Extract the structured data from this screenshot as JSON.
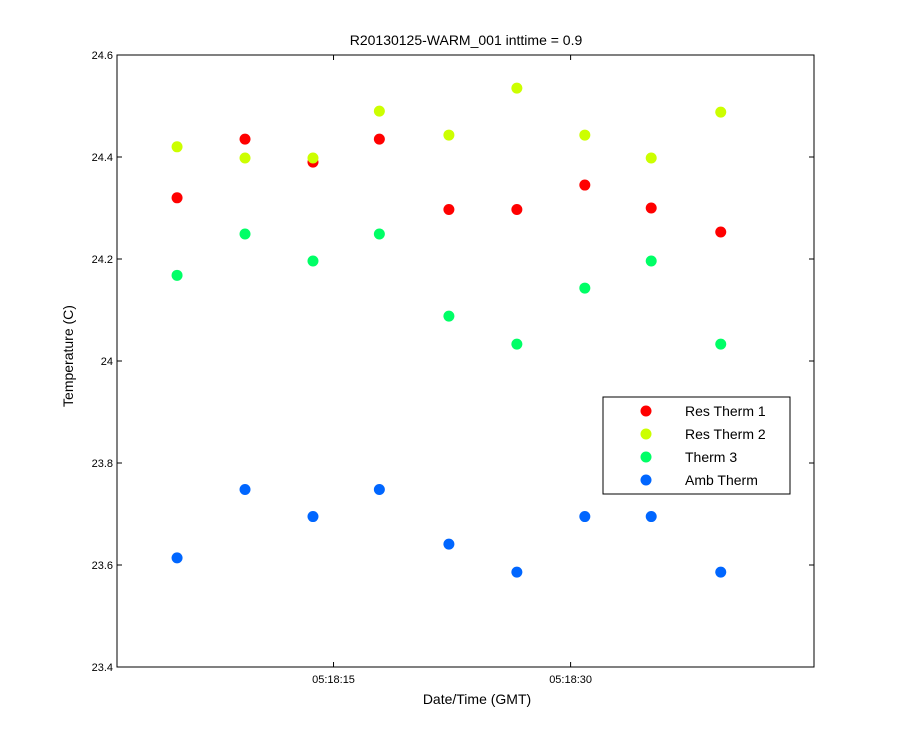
{
  "chart_data": {
    "type": "scatter",
    "title": "R20130125-WARM_001 inttime = 0.9",
    "xlabel": "Date/Time (GMT)",
    "ylabel": "Temperature (C)",
    "x_unit": "seconds past 05:18:00",
    "xlim": [
      1.3,
      45.4
    ],
    "ylim": [
      23.4,
      24.6
    ],
    "y_ticks": [
      23.4,
      23.6,
      23.8,
      24.0,
      24.2,
      24.4,
      24.6
    ],
    "y_tick_labels": [
      "23.4",
      "23.6",
      "23.8",
      "24",
      "24.2",
      "24.4",
      "24.6"
    ],
    "x_ticks": [
      15,
      30
    ],
    "x_tick_labels": [
      "05:18:15",
      "05:18:30"
    ],
    "grid": false,
    "legend_position": "right",
    "x": [
      5.1,
      9.4,
      13.7,
      17.9,
      22.3,
      26.6,
      30.9,
      35.1,
      39.5
    ],
    "series": [
      {
        "name": "Res Therm 1",
        "color": "#ff0000",
        "values": [
          24.32,
          24.435,
          24.39,
          24.435,
          24.297,
          24.297,
          24.345,
          24.3,
          24.253
        ]
      },
      {
        "name": "Res Therm 2",
        "color": "#ccff00",
        "values": [
          24.42,
          24.398,
          24.398,
          24.49,
          24.443,
          24.535,
          24.443,
          24.398,
          24.488
        ]
      },
      {
        "name": "Therm 3",
        "color": "#00ff66",
        "values": [
          24.168,
          24.249,
          24.196,
          24.249,
          24.088,
          24.033,
          24.143,
          24.196,
          24.033
        ]
      },
      {
        "name": "Amb Therm",
        "color": "#0066ff",
        "values": [
          23.614,
          23.748,
          23.695,
          23.748,
          23.641,
          23.586,
          23.695,
          23.695,
          23.586
        ]
      }
    ]
  }
}
